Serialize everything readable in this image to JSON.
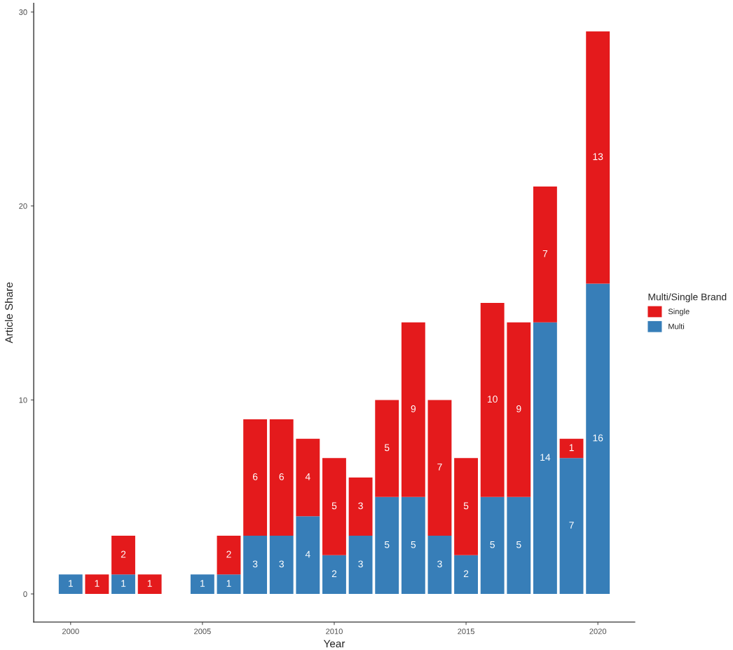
{
  "chart_data": {
    "type": "bar",
    "stacked": true,
    "xlabel": "Year",
    "ylabel": "Article Share",
    "legend_title": "Multi/Single Brand",
    "x": [
      2000,
      2001,
      2002,
      2003,
      2005,
      2006,
      2007,
      2008,
      2009,
      2010,
      2011,
      2012,
      2013,
      2014,
      2015,
      2016,
      2017,
      2018,
      2019,
      2020
    ],
    "series": [
      {
        "name": "Multi",
        "color": "#377eb8",
        "values": [
          1,
          0,
          1,
          0,
          1,
          1,
          3,
          3,
          4,
          2,
          3,
          5,
          5,
          3,
          2,
          5,
          5,
          14,
          7,
          16
        ],
        "value_labels": [
          "1",
          null,
          "1",
          null,
          "1",
          "1",
          "3",
          "3",
          "4",
          "2",
          "3",
          "5",
          "5",
          "3",
          "2",
          "5",
          "5",
          "14",
          "7",
          "16"
        ]
      },
      {
        "name": "Single",
        "color": "#e41a1c",
        "values": [
          0,
          1,
          2,
          1,
          0,
          2,
          6,
          6,
          4,
          5,
          3,
          5,
          9,
          7,
          5,
          10,
          9,
          7,
          1,
          13
        ],
        "value_labels": [
          null,
          "1",
          "2",
          "1",
          null,
          "2",
          "6",
          "6",
          "4",
          "5",
          "3",
          "5",
          "9",
          "7",
          "5",
          "10",
          "9",
          "7",
          "1",
          "13"
        ]
      }
    ],
    "legend": "right",
    "grid": false,
    "xlim": [
      1998.6,
      2021.4
    ],
    "xticks": [
      2000,
      2005,
      2010,
      2015,
      2020
    ],
    "ylim": [
      -1.45,
      30.45
    ],
    "yticks": [
      0,
      10,
      20,
      30
    ]
  }
}
